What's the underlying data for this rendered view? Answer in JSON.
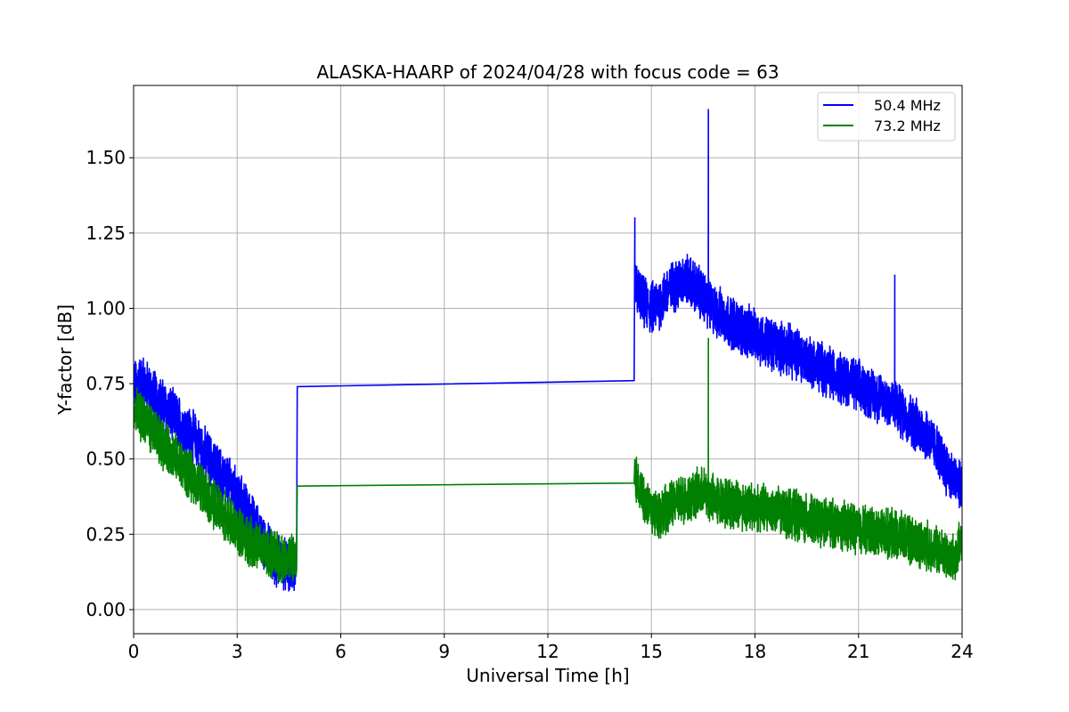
{
  "chart_data": {
    "type": "line",
    "title": "ALASKA-HAARP of 2024/04/28 with focus code = 63",
    "xlabel": "Universal Time [h]",
    "ylabel": "Y-factor [dB]",
    "xlim": [
      0,
      24
    ],
    "ylim": [
      -0.08,
      1.74
    ],
    "xticks": [
      0,
      3,
      6,
      9,
      12,
      15,
      18,
      21,
      24
    ],
    "xtick_labels": [
      "0",
      "3",
      "6",
      "9",
      "12",
      "15",
      "18",
      "21",
      "24"
    ],
    "yticks": [
      0.0,
      0.25,
      0.5,
      0.75,
      1.0,
      1.25,
      1.5
    ],
    "ytick_labels": [
      "0.00",
      "0.25",
      "0.50",
      "0.75",
      "1.00",
      "1.25",
      "1.50"
    ],
    "grid": true,
    "legend_position": "top-right",
    "series": [
      {
        "name": "50.4 MHz",
        "color": "#0000ff",
        "x": [
          0.0,
          0.25,
          0.5,
          0.75,
          1.0,
          1.25,
          1.5,
          1.75,
          2.0,
          2.25,
          2.5,
          2.75,
          3.0,
          3.25,
          3.5,
          3.75,
          4.0,
          4.25,
          4.5,
          4.72,
          4.74,
          14.5,
          14.52,
          14.75,
          15.0,
          15.25,
          15.5,
          15.75,
          16.0,
          16.25,
          16.5,
          16.75,
          17.0,
          17.5,
          18.0,
          18.5,
          19.0,
          19.5,
          20.0,
          20.5,
          21.0,
          21.5,
          22.0,
          22.5,
          23.0,
          23.25,
          23.5,
          23.75,
          24.0
        ],
        "y": [
          0.74,
          0.76,
          0.72,
          0.69,
          0.66,
          0.63,
          0.6,
          0.57,
          0.53,
          0.49,
          0.45,
          0.42,
          0.38,
          0.33,
          0.28,
          0.23,
          0.18,
          0.16,
          0.14,
          0.13,
          0.74,
          0.76,
          1.08,
          1.02,
          1.0,
          1.02,
          1.06,
          1.08,
          1.1,
          1.07,
          1.04,
          1.0,
          0.98,
          0.94,
          0.91,
          0.88,
          0.86,
          0.83,
          0.8,
          0.77,
          0.74,
          0.71,
          0.68,
          0.63,
          0.58,
          0.53,
          0.48,
          0.43,
          0.41
        ]
      },
      {
        "name": "73.2 MHz",
        "color": "#008000",
        "x": [
          0.0,
          0.25,
          0.5,
          0.75,
          1.0,
          1.25,
          1.5,
          1.75,
          2.0,
          2.25,
          2.5,
          2.75,
          3.0,
          3.25,
          3.5,
          3.75,
          4.0,
          4.25,
          4.5,
          4.72,
          4.74,
          14.5,
          14.52,
          14.75,
          15.0,
          15.25,
          15.5,
          15.75,
          16.0,
          16.25,
          16.5,
          16.75,
          17.0,
          17.5,
          18.0,
          18.5,
          19.0,
          19.5,
          20.0,
          20.5,
          21.0,
          21.5,
          22.0,
          22.5,
          23.0,
          23.25,
          23.5,
          23.75,
          24.0
        ],
        "y": [
          0.65,
          0.64,
          0.6,
          0.56,
          0.53,
          0.5,
          0.46,
          0.43,
          0.4,
          0.36,
          0.33,
          0.3,
          0.26,
          0.24,
          0.22,
          0.2,
          0.18,
          0.17,
          0.17,
          0.16,
          0.41,
          0.42,
          0.44,
          0.38,
          0.33,
          0.32,
          0.34,
          0.36,
          0.37,
          0.38,
          0.39,
          0.37,
          0.36,
          0.35,
          0.34,
          0.33,
          0.32,
          0.3,
          0.29,
          0.28,
          0.27,
          0.26,
          0.25,
          0.23,
          0.21,
          0.2,
          0.18,
          0.17,
          0.22
        ]
      }
    ],
    "annotations": [
      {
        "series": 0,
        "x": 14.52,
        "y": 1.3
      },
      {
        "series": 0,
        "x": 16.65,
        "y": 1.66
      },
      {
        "series": 0,
        "x": 22.05,
        "y": 1.11
      },
      {
        "series": 1,
        "x": 16.65,
        "y": 0.9
      }
    ]
  }
}
